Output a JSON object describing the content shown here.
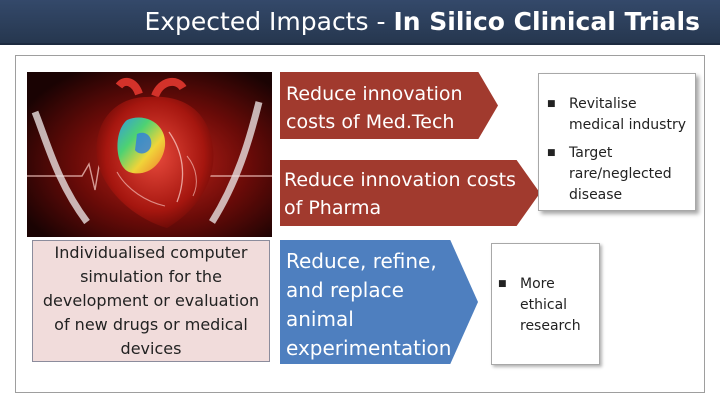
{
  "title": {
    "prefix": "Expected Impacts - ",
    "emphasis": "In Silico Clinical Trials"
  },
  "image": {
    "alt": "heart-simulation-image"
  },
  "description": "Individualised computer simulation for the development or evaluation of new drugs or medical devices",
  "arrows": {
    "medtech": "Reduce innovation costs of Med.Tech",
    "pharma": "Reduce innovation costs of Pharma",
    "animal": "Reduce, refine, and replace animal experimentation"
  },
  "bullets_top": [
    {
      "marker": "■",
      "text": "Revitalise medical industry"
    },
    {
      "marker": "■",
      "text": "Target rare/neglected disease"
    }
  ],
  "bullets_bottom": [
    {
      "marker": "■",
      "text": "More ethical research"
    }
  ],
  "colors": {
    "title_bar": "#2f4261",
    "arrow_red": "#a13a2e",
    "arrow_blue": "#4e7fbf",
    "desc_box": "#f1dcdb"
  }
}
